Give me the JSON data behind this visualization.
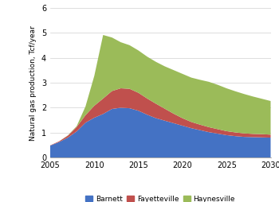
{
  "years": [
    2005,
    2006,
    2007,
    2008,
    2009,
    2010,
    2011,
    2012,
    2013,
    2014,
    2015,
    2016,
    2017,
    2018,
    2019,
    2020,
    2021,
    2022,
    2023,
    2024,
    2025,
    2026,
    2027,
    2028,
    2029,
    2030
  ],
  "barnett": [
    0.48,
    0.62,
    0.8,
    1.05,
    1.4,
    1.6,
    1.75,
    1.95,
    2.0,
    1.98,
    1.88,
    1.72,
    1.58,
    1.48,
    1.38,
    1.28,
    1.18,
    1.1,
    1.02,
    0.96,
    0.9,
    0.86,
    0.83,
    0.82,
    0.81,
    0.8
  ],
  "fayetteville": [
    0.01,
    0.03,
    0.08,
    0.18,
    0.3,
    0.48,
    0.62,
    0.72,
    0.78,
    0.78,
    0.72,
    0.65,
    0.58,
    0.48,
    0.38,
    0.3,
    0.25,
    0.22,
    0.2,
    0.18,
    0.16,
    0.15,
    0.14,
    0.13,
    0.13,
    0.12
  ],
  "haynesville": [
    0.0,
    0.0,
    0.01,
    0.03,
    0.35,
    1.2,
    2.55,
    2.15,
    1.85,
    1.75,
    1.7,
    1.68,
    1.68,
    1.7,
    1.75,
    1.78,
    1.78,
    1.8,
    1.82,
    1.78,
    1.72,
    1.65,
    1.58,
    1.5,
    1.42,
    1.35
  ],
  "barnett_color": "#4472C4",
  "fayetteville_color": "#C0504D",
  "haynesville_color": "#9BBB59",
  "ylabel": "Natural gas production, Tcf/year",
  "xlim": [
    2005,
    2030
  ],
  "ylim": [
    0,
    6
  ],
  "yticks": [
    0,
    1,
    2,
    3,
    4,
    5,
    6
  ],
  "xticks": [
    2005,
    2010,
    2015,
    2020,
    2025,
    2030
  ],
  "legend_labels": [
    "Barnett",
    "Fayetteville",
    "Haynesville"
  ],
  "figsize": [
    3.5,
    2.54
  ],
  "dpi": 100
}
